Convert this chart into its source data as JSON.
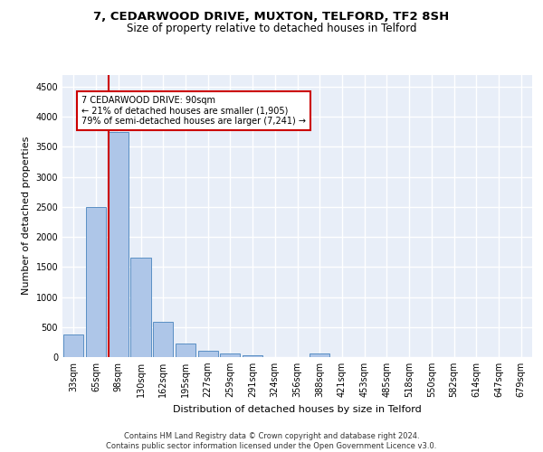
{
  "title1": "7, CEDARWOOD DRIVE, MUXTON, TELFORD, TF2 8SH",
  "title2": "Size of property relative to detached houses in Telford",
  "xlabel": "Distribution of detached houses by size in Telford",
  "ylabel": "Number of detached properties",
  "categories": [
    "33sqm",
    "65sqm",
    "98sqm",
    "130sqm",
    "162sqm",
    "195sqm",
    "227sqm",
    "259sqm",
    "291sqm",
    "324sqm",
    "356sqm",
    "388sqm",
    "421sqm",
    "453sqm",
    "485sqm",
    "518sqm",
    "550sqm",
    "582sqm",
    "614sqm",
    "647sqm",
    "679sqm"
  ],
  "values": [
    370,
    2500,
    3750,
    1650,
    590,
    230,
    105,
    60,
    35,
    0,
    0,
    55,
    0,
    0,
    0,
    0,
    0,
    0,
    0,
    0,
    0
  ],
  "bar_color": "#aec6e8",
  "bar_edge_color": "#5a8fc4",
  "vline_color": "#cc0000",
  "annotation_text": "7 CEDARWOOD DRIVE: 90sqm\n← 21% of detached houses are smaller (1,905)\n79% of semi-detached houses are larger (7,241) →",
  "box_color": "#cc0000",
  "ylim": [
    0,
    4700
  ],
  "yticks": [
    0,
    500,
    1000,
    1500,
    2000,
    2500,
    3000,
    3500,
    4000,
    4500
  ],
  "background_color": "#e8eef8",
  "footer": "Contains HM Land Registry data © Crown copyright and database right 2024.\nContains public sector information licensed under the Open Government Licence v3.0.",
  "title1_fontsize": 9.5,
  "title2_fontsize": 8.5,
  "xlabel_fontsize": 8,
  "ylabel_fontsize": 8,
  "tick_fontsize": 7,
  "footer_fontsize": 6
}
